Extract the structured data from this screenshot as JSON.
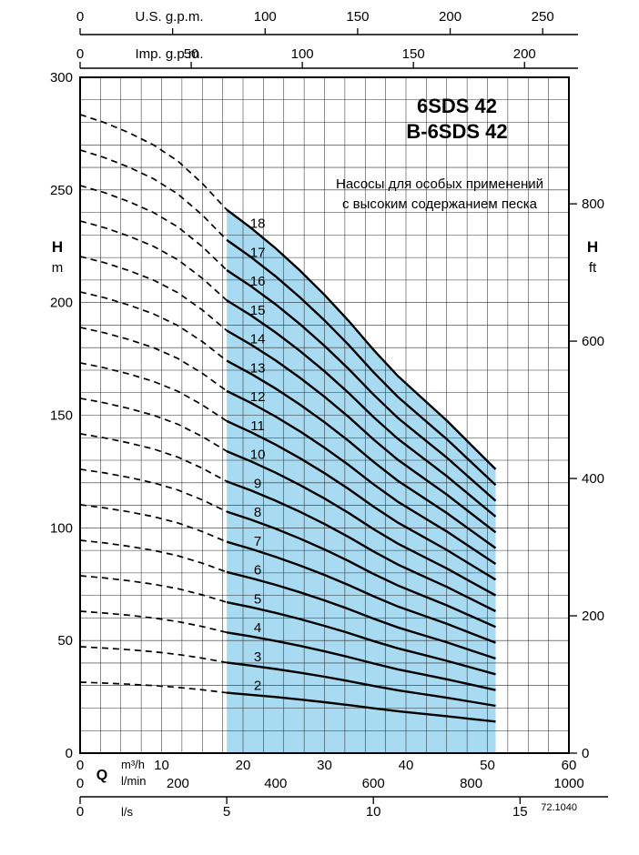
{
  "header": {
    "title_line1": "6SDS 42",
    "title_line2": "B-6SDS 42",
    "subtitle_line1": "Насосы для особых применений",
    "subtitle_line2": "с высоким содержанием песка"
  },
  "footer_code": "72.1040",
  "axis_labels": {
    "left_symbol": "H",
    "left_unit": "m",
    "right_symbol": "H",
    "right_unit": "ft",
    "flow_symbol": "Q",
    "flow_unit_1": "m³/h",
    "flow_unit_2": "l/min",
    "flow_unit_3": "l/s",
    "top_axis_1_title": "U.S. g.p.m.",
    "top_axis_2_title": "Imp. g.p.m."
  },
  "chart_data": {
    "type": "line",
    "title": "6SDS 42 / B-6SDS 42 multistage pump head-flow curves",
    "xlabel": "Q (flow rate)",
    "ylabel": "H (head)",
    "grid": {
      "x_step_m3h": 2.5,
      "y_step_m": 10,
      "on": true
    },
    "x_axes": {
      "m3h": {
        "range": [
          0,
          60
        ],
        "ticks": [
          0,
          10,
          20,
          30,
          40,
          50,
          60
        ],
        "tick_labels": [
          "0",
          "10",
          "20",
          "30",
          "40",
          "50",
          "60"
        ],
        "to_m3h": 1
      },
      "l_min": {
        "range": [
          0,
          1000
        ],
        "ticks": [
          0,
          200,
          400,
          600,
          800,
          1000
        ],
        "tick_labels": [
          "0",
          "200",
          "400",
          "600",
          "800",
          "1000"
        ],
        "to_m3h": 0.06
      },
      "l_s": {
        "ticks": [
          0,
          5,
          10,
          15
        ],
        "tick_labels": [
          "0",
          "5",
          "10",
          "15"
        ],
        "to_m3h": 3.6
      },
      "us_gpm": {
        "ticks": [
          0,
          50,
          100,
          150,
          200,
          250
        ],
        "tick_labels": [
          "0",
          "",
          "100",
          "150",
          "200",
          "250"
        ],
        "to_m3h": 0.227125
      },
      "imp_gpm": {
        "ticks": [
          0,
          50,
          100,
          150,
          200
        ],
        "tick_labels": [
          "0",
          "50",
          "100",
          "150",
          "200"
        ],
        "to_m3h": 0.272766
      }
    },
    "y_axes": {
      "m": {
        "range": [
          0,
          300
        ],
        "ticks": [
          0,
          50,
          100,
          150,
          200,
          250,
          300
        ]
      },
      "ft": {
        "ticks": [
          0,
          200,
          400,
          600,
          800
        ],
        "to_m": 0.3048
      }
    },
    "stages": [
      2,
      3,
      4,
      5,
      6,
      7,
      8,
      9,
      10,
      11,
      12,
      13,
      14,
      15,
      16,
      17,
      18
    ],
    "per_stage_head_curve": {
      "q_m3h": [
        0,
        3,
        6,
        9,
        12,
        15,
        18,
        21,
        24,
        27,
        30,
        33,
        36,
        39,
        42,
        45,
        48,
        51
      ],
      "head_m": [
        15.75,
        15.55,
        15.3,
        15.0,
        14.6,
        14.05,
        13.4,
        12.95,
        12.45,
        11.9,
        11.3,
        10.65,
        9.95,
        9.3,
        8.75,
        8.2,
        7.6,
        7.0
      ]
    },
    "dashed_q_range": [
      0,
      18
    ],
    "solid_q_range": [
      18,
      51
    ],
    "operating_range": {
      "q_min_m3h": 18,
      "q_max_m3h": 51,
      "fill": "#a8daf2"
    },
    "curve_color": "#000000",
    "stage_label_q_m3h": 21.8
  }
}
